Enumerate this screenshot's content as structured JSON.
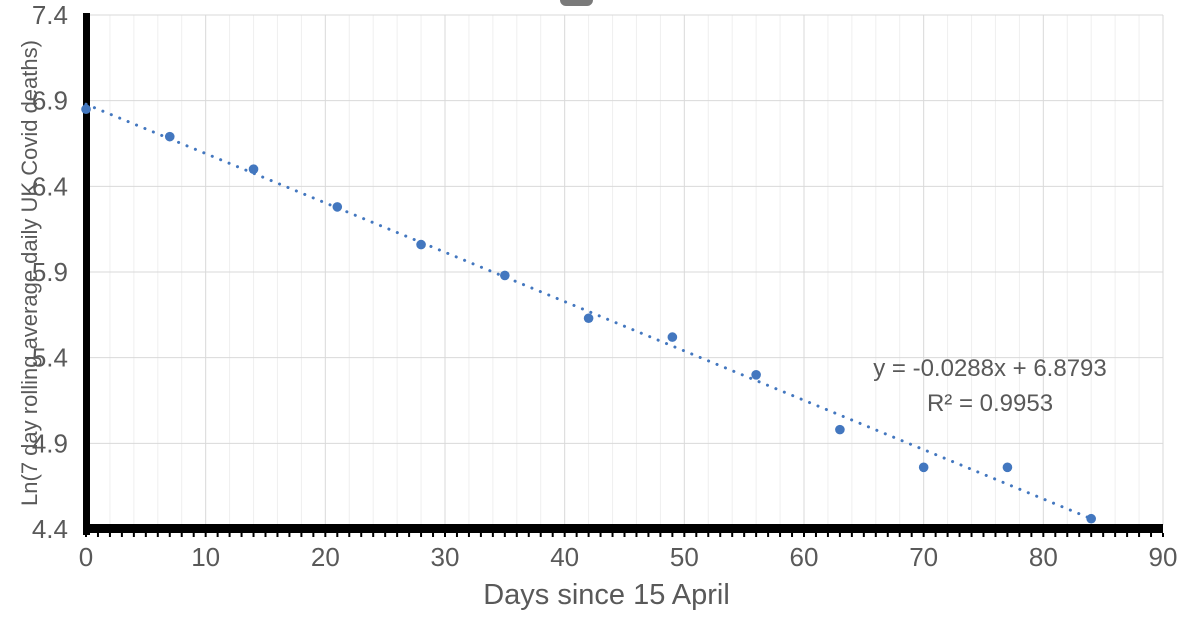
{
  "chart_data": {
    "type": "scatter",
    "xlabel": "Days since 15 April",
    "ylabel": "Ln(7 day rolling average daily UK Covid deaths)",
    "x": [
      0,
      7,
      14,
      21,
      28,
      35,
      42,
      49,
      56,
      63,
      70,
      77,
      84
    ],
    "y": [
      6.85,
      6.69,
      6.5,
      6.28,
      6.06,
      5.88,
      5.63,
      5.52,
      5.3,
      4.98,
      4.76,
      4.76,
      4.46
    ],
    "xlim": [
      0,
      90
    ],
    "ylim": [
      4.4,
      7.4
    ],
    "x_major_ticks": [
      0,
      10,
      20,
      30,
      40,
      50,
      60,
      70,
      80,
      90
    ],
    "y_major_ticks": [
      7.4,
      6.9,
      6.4,
      5.9,
      5.4,
      4.9,
      4.4
    ],
    "x_minor_grid_step": 2,
    "grid": true,
    "legend": "none",
    "trendline": {
      "slope": -0.0288,
      "intercept": 6.8793,
      "x_start": 0,
      "x_end": 84,
      "style": "dotted",
      "equation_line1": "y = -0.0288x + 6.8793",
      "equation_line2": "R² = 0.9953"
    },
    "colors": {
      "marker": "#4377BF",
      "trendline": "#4377BF",
      "text": "#595959",
      "grid_major": "#D9D9D9",
      "grid_minor": "#EFEFEF",
      "axis": "#000000",
      "background": "#FFFFFF"
    }
  }
}
